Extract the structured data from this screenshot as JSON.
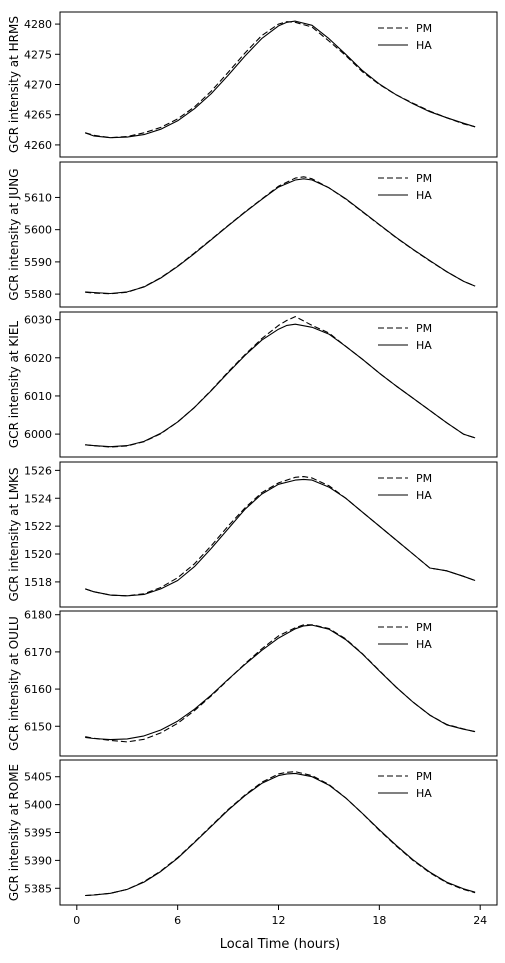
{
  "chart_data": [
    {
      "type": "line",
      "ylabel": "GCR intensity at HRMS",
      "ylim": [
        4258,
        4282
      ],
      "yticks": [
        4260,
        4265,
        4270,
        4275,
        4280
      ],
      "legend_placement": "top-right",
      "series": [
        {
          "name": "PM",
          "style": "dashed",
          "x": [
            0.5,
            1,
            2,
            3,
            4,
            5,
            6,
            7,
            8,
            9,
            10,
            11,
            12,
            12.5,
            13,
            14,
            15,
            16,
            17,
            18,
            19,
            20,
            21,
            22,
            23,
            23.7
          ],
          "y": [
            4262,
            4261.6,
            4261.2,
            4261.4,
            4262,
            4262.9,
            4264.3,
            4266.3,
            4268.9,
            4272,
            4275.2,
            4278.1,
            4280.0,
            4280.4,
            4280.3,
            4279.5,
            4277.2,
            4274.8,
            4272.1,
            4270.0,
            4268.3,
            4266.9,
            4265.6,
            4264.5,
            4263.5,
            4263.0
          ]
        },
        {
          "name": "HA",
          "style": "solid",
          "x": [
            0.5,
            1,
            2,
            3,
            4,
            5,
            6,
            7,
            8,
            9,
            10,
            11,
            12,
            12.5,
            13,
            14,
            15,
            16,
            17,
            18,
            19,
            20,
            21,
            22,
            23,
            23.7
          ],
          "y": [
            4262,
            4261.5,
            4261.2,
            4261.3,
            4261.7,
            4262.6,
            4264.0,
            4266.0,
            4268.5,
            4271.5,
            4274.7,
            4277.6,
            4279.7,
            4280.3,
            4280.5,
            4279.8,
            4277.6,
            4275.0,
            4272.3,
            4270.1,
            4268.3,
            4266.8,
            4265.5,
            4264.5,
            4263.6,
            4263.0
          ]
        }
      ]
    },
    {
      "type": "line",
      "ylabel": "GCR intensity at JUNG",
      "ylim": [
        5576,
        5621
      ],
      "yticks": [
        5580,
        5590,
        5600,
        5610
      ],
      "legend_placement": "top-right",
      "series": [
        {
          "name": "PM",
          "style": "dashed",
          "x": [
            0.5,
            1,
            2,
            3,
            4,
            5,
            6,
            7,
            8,
            9,
            10,
            11,
            12,
            13,
            13.5,
            14,
            15,
            16,
            17,
            18,
            19,
            20,
            21,
            22,
            23,
            23.7
          ],
          "y": [
            5580.6,
            5580.3,
            5580.1,
            5580.6,
            5582.3,
            5585.1,
            5588.7,
            5592.8,
            5597.0,
            5601.3,
            5605.5,
            5609.5,
            5613.5,
            5616.0,
            5616.4,
            5615.8,
            5613.0,
            5609.5,
            5605.5,
            5601.5,
            5597.5,
            5593.8,
            5590.3,
            5587.0,
            5584.0,
            5582.5
          ]
        },
        {
          "name": "HA",
          "style": "solid",
          "x": [
            0.5,
            1,
            2,
            3,
            4,
            5,
            6,
            7,
            8,
            9,
            10,
            11,
            12,
            13,
            13.5,
            14,
            15,
            16,
            17,
            18,
            19,
            20,
            21,
            22,
            23,
            23.7
          ],
          "y": [
            5580.7,
            5580.5,
            5580.2,
            5580.7,
            5582.2,
            5585.0,
            5588.6,
            5592.6,
            5596.9,
            5601.2,
            5605.4,
            5609.4,
            5613.2,
            5615.4,
            5615.8,
            5615.4,
            5613.0,
            5609.6,
            5605.6,
            5601.6,
            5597.6,
            5593.9,
            5590.4,
            5587.0,
            5584.0,
            5582.5
          ]
        }
      ]
    },
    {
      "type": "line",
      "ylabel": "GCR intensity at KIEL",
      "ylim": [
        5994,
        6032
      ],
      "yticks": [
        6000,
        6010,
        6020,
        6030
      ],
      "legend_placement": "top-right",
      "series": [
        {
          "name": "PM",
          "style": "dashed",
          "x": [
            0.5,
            1,
            2,
            3,
            4,
            5,
            6,
            7,
            8,
            9,
            10,
            11,
            12,
            12.5,
            13,
            14,
            15,
            16,
            17,
            18,
            19,
            20,
            21,
            22,
            23,
            23.7
          ],
          "y": [
            5997.2,
            5997.0,
            5996.6,
            5996.9,
            5998.0,
            6000.1,
            6003.2,
            6007.0,
            6011.5,
            6016.3,
            6020.8,
            6025.0,
            6028.5,
            6029.8,
            6030.8,
            6028.5,
            6026.5,
            6023.0,
            6019.6,
            6016.0,
            6012.6,
            6009.4,
            6006.2,
            6003.0,
            6000.0,
            5999.0
          ]
        },
        {
          "name": "HA",
          "style": "solid",
          "x": [
            0.5,
            1,
            2,
            3,
            4,
            5,
            6,
            7,
            8,
            9,
            10,
            11,
            12,
            12.5,
            13,
            14,
            15,
            16,
            17,
            18,
            19,
            20,
            21,
            22,
            23,
            23.7
          ],
          "y": [
            5997.2,
            5997.0,
            5996.7,
            5997.0,
            5998.1,
            6000.2,
            6003.2,
            6007.0,
            6011.4,
            6016.1,
            6020.6,
            6024.6,
            6027.5,
            6028.5,
            6028.8,
            6028.0,
            6026.2,
            6023.0,
            6019.6,
            6016.0,
            6012.6,
            6009.4,
            6006.2,
            6003.0,
            6000.0,
            5999.0
          ]
        }
      ]
    },
    {
      "type": "line",
      "ylabel": "GCR intensity at LMKS",
      "ylim": [
        1516.2,
        1526.6
      ],
      "yticks": [
        1518,
        1520,
        1522,
        1524,
        1526
      ],
      "legend_placement": "top-right",
      "series": [
        {
          "name": "PM",
          "style": "dashed",
          "x": [
            0.5,
            1,
            2,
            3,
            4,
            5,
            6,
            7,
            8,
            9,
            10,
            11,
            12,
            13,
            13.5,
            14,
            15,
            16,
            17,
            18,
            19,
            20,
            21,
            22,
            23,
            23.7
          ],
          "y": [
            1517.5,
            1517.3,
            1517.05,
            1517.0,
            1517.15,
            1517.6,
            1518.3,
            1519.3,
            1520.6,
            1522.0,
            1523.3,
            1524.4,
            1525.1,
            1525.5,
            1525.55,
            1525.45,
            1524.9,
            1524.0,
            1523.0,
            1522.0,
            1521.0,
            1520.0,
            1519.0,
            1518.8,
            1518.4,
            1518.1
          ]
        },
        {
          "name": "HA",
          "style": "solid",
          "x": [
            0.5,
            1,
            2,
            3,
            4,
            5,
            6,
            7,
            8,
            9,
            10,
            11,
            12,
            13,
            13.5,
            14,
            15,
            16,
            17,
            18,
            19,
            20,
            21,
            22,
            23,
            23.7
          ],
          "y": [
            1517.5,
            1517.3,
            1517.05,
            1517.0,
            1517.1,
            1517.5,
            1518.1,
            1519.1,
            1520.4,
            1521.8,
            1523.2,
            1524.3,
            1525.0,
            1525.3,
            1525.35,
            1525.3,
            1524.8,
            1524.0,
            1523.0,
            1522.0,
            1521.0,
            1520.0,
            1519.0,
            1518.8,
            1518.4,
            1518.1
          ]
        }
      ]
    },
    {
      "type": "line",
      "ylabel": "GCR intensity at OULU",
      "ylim": [
        6142,
        6181
      ],
      "yticks": [
        6150,
        6160,
        6170,
        6180
      ],
      "legend_placement": "top-right",
      "series": [
        {
          "name": "PM",
          "style": "dashed",
          "x": [
            0.5,
            1,
            2,
            3,
            4,
            5,
            6,
            7,
            8,
            9,
            10,
            11,
            12,
            13,
            13.5,
            14,
            15,
            16,
            17,
            18,
            19,
            20,
            21,
            22,
            23,
            23.7
          ],
          "y": [
            6147.2,
            6146.8,
            6146.2,
            6145.8,
            6146.5,
            6148.2,
            6150.8,
            6154.2,
            6158.2,
            6162.5,
            6166.8,
            6170.8,
            6174.3,
            6176.5,
            6177.3,
            6177.3,
            6176.3,
            6173.5,
            6169.5,
            6165.0,
            6160.5,
            6156.5,
            6153.0,
            6150.5,
            6149.3,
            6148.5
          ]
        },
        {
          "name": "HA",
          "style": "solid",
          "x": [
            0.5,
            1,
            2,
            3,
            4,
            5,
            6,
            7,
            8,
            9,
            10,
            11,
            12,
            13,
            13.5,
            14,
            15,
            16,
            17,
            18,
            19,
            20,
            21,
            22,
            23,
            23.7
          ],
          "y": [
            6147.0,
            6146.7,
            6146.4,
            6146.6,
            6147.4,
            6149.0,
            6151.4,
            6154.6,
            6158.4,
            6162.6,
            6166.6,
            6170.4,
            6173.7,
            6176.2,
            6177.0,
            6177.2,
            6176.1,
            6173.3,
            6169.4,
            6164.9,
            6160.5,
            6156.5,
            6153.0,
            6150.4,
            6149.2,
            6148.6
          ]
        }
      ]
    },
    {
      "type": "line",
      "ylabel": "GCR intensity at ROME",
      "ylim": [
        5382,
        5408
      ],
      "yticks": [
        5385,
        5390,
        5395,
        5400,
        5405
      ],
      "legend_placement": "top-right",
      "series": [
        {
          "name": "PM",
          "style": "dashed",
          "x": [
            0.5,
            1,
            2,
            3,
            4,
            5,
            6,
            7,
            8,
            9,
            10,
            11,
            12,
            12.5,
            13,
            14,
            15,
            16,
            17,
            18,
            19,
            20,
            21,
            22,
            23,
            23.7
          ],
          "y": [
            5383.7,
            5383.8,
            5384.1,
            5384.8,
            5386.2,
            5388.1,
            5390.5,
            5393.3,
            5396.2,
            5399.1,
            5401.7,
            5404.0,
            5405.5,
            5405.8,
            5405.9,
            5405.2,
            5403.6,
            5401.2,
            5398.4,
            5395.4,
            5392.6,
            5390.0,
            5387.8,
            5386.0,
            5384.8,
            5384.2
          ]
        },
        {
          "name": "HA",
          "style": "solid",
          "x": [
            0.5,
            1,
            2,
            3,
            4,
            5,
            6,
            7,
            8,
            9,
            10,
            11,
            12,
            12.5,
            13,
            14,
            15,
            16,
            17,
            18,
            19,
            20,
            21,
            22,
            23,
            23.7
          ],
          "y": [
            5383.7,
            5383.8,
            5384.1,
            5384.8,
            5386.1,
            5388.0,
            5390.4,
            5393.2,
            5396.1,
            5399.0,
            5401.6,
            5403.8,
            5405.2,
            5405.5,
            5405.6,
            5405.0,
            5403.5,
            5401.2,
            5398.4,
            5395.5,
            5392.7,
            5390.1,
            5387.9,
            5386.1,
            5384.9,
            5384.3
          ]
        }
      ]
    }
  ],
  "x_axis": {
    "label": "Local Time (hours)",
    "xlim": [
      -1,
      25
    ],
    "ticks": [
      0,
      6,
      12,
      18,
      24
    ]
  }
}
